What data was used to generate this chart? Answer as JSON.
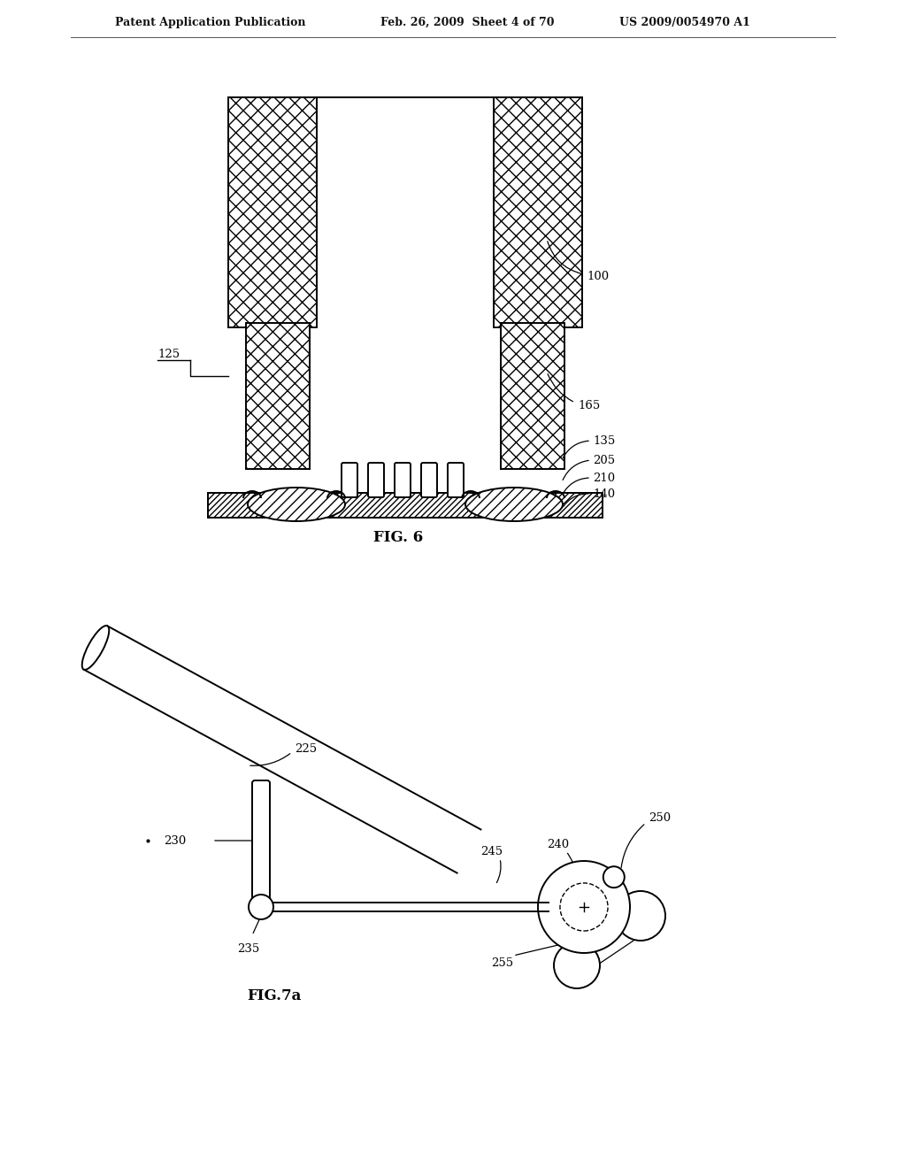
{
  "background_color": "#ffffff",
  "header_text1": "Patent Application Publication",
  "header_text2": "Feb. 26, 2009  Sheet 4 of 70",
  "header_text3": "US 2009/0054970 A1",
  "fig6_label": "FIG. 6",
  "fig7a_label": "FIG.7a"
}
